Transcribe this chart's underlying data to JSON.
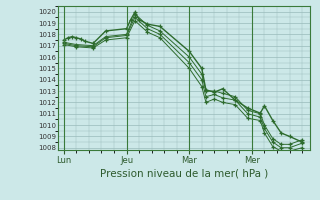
{
  "xlabel": "Pression niveau de la mer( hPa )",
  "bg_color": "#cce8e8",
  "plot_bg_color": "#cce8e8",
  "grid_color": "#99bbbb",
  "line_color": "#2d6b2d",
  "marker_color": "#2d6b2d",
  "vline_color": "#3a7a3a",
  "ylim": [
    1007.8,
    1020.5
  ],
  "yticks": [
    1008,
    1009,
    1010,
    1011,
    1012,
    1013,
    1014,
    1015,
    1016,
    1017,
    1018,
    1019,
    1020
  ],
  "xtick_labels": [
    "Lun",
    "Jeu",
    "Mar",
    "Mer"
  ],
  "xtick_positions": [
    0,
    30,
    60,
    90
  ],
  "vlines": [
    0,
    30,
    60,
    90
  ],
  "xlim": [
    -3,
    118
  ],
  "series1_x": [
    0,
    2,
    4,
    6,
    8,
    10,
    14,
    20,
    30,
    32,
    34,
    36,
    40,
    46,
    60,
    66,
    68,
    72,
    76,
    82,
    88,
    94,
    96,
    100,
    104,
    108,
    114
  ],
  "series1_y": [
    1017.5,
    1017.7,
    1017.8,
    1017.7,
    1017.6,
    1017.4,
    1017.2,
    1018.3,
    1018.5,
    1019.3,
    1019.95,
    1019.3,
    1018.9,
    1018.7,
    1016.5,
    1015.0,
    1013.1,
    1012.9,
    1013.2,
    1012.2,
    1011.5,
    1011.05,
    1011.7,
    1010.4,
    1009.3,
    1009.0,
    1008.5
  ],
  "series2_x": [
    0,
    6,
    14,
    20,
    30,
    34,
    40,
    46,
    60,
    66,
    68,
    72,
    76,
    82,
    88,
    94,
    96,
    100,
    104,
    108,
    114
  ],
  "series2_y": [
    1017.3,
    1017.1,
    1017.0,
    1017.8,
    1018.0,
    1019.8,
    1018.8,
    1018.3,
    1016.0,
    1014.5,
    1013.0,
    1013.0,
    1012.8,
    1012.5,
    1011.3,
    1011.0,
    1010.0,
    1008.8,
    1008.3,
    1008.3,
    1008.7
  ],
  "series3_x": [
    0,
    6,
    14,
    20,
    30,
    34,
    40,
    46,
    60,
    66,
    68,
    72,
    76,
    82,
    88,
    94,
    96,
    100,
    104,
    108,
    114
  ],
  "series3_y": [
    1017.2,
    1017.0,
    1016.9,
    1017.7,
    1017.9,
    1019.5,
    1018.5,
    1018.0,
    1015.5,
    1014.0,
    1012.5,
    1012.7,
    1012.4,
    1012.2,
    1011.0,
    1010.7,
    1009.7,
    1008.5,
    1008.0,
    1008.0,
    1008.4
  ],
  "series4_x": [
    0,
    6,
    14,
    20,
    30,
    34,
    40,
    46,
    60,
    66,
    68,
    72,
    76,
    82,
    88,
    94,
    96,
    100,
    104,
    108,
    114
  ],
  "series4_y": [
    1017.1,
    1016.9,
    1016.8,
    1017.5,
    1017.7,
    1019.2,
    1018.2,
    1017.7,
    1015.0,
    1013.4,
    1012.0,
    1012.3,
    1012.0,
    1011.8,
    1010.6,
    1010.4,
    1009.3,
    1008.1,
    1007.7,
    1007.7,
    1008.0
  ]
}
